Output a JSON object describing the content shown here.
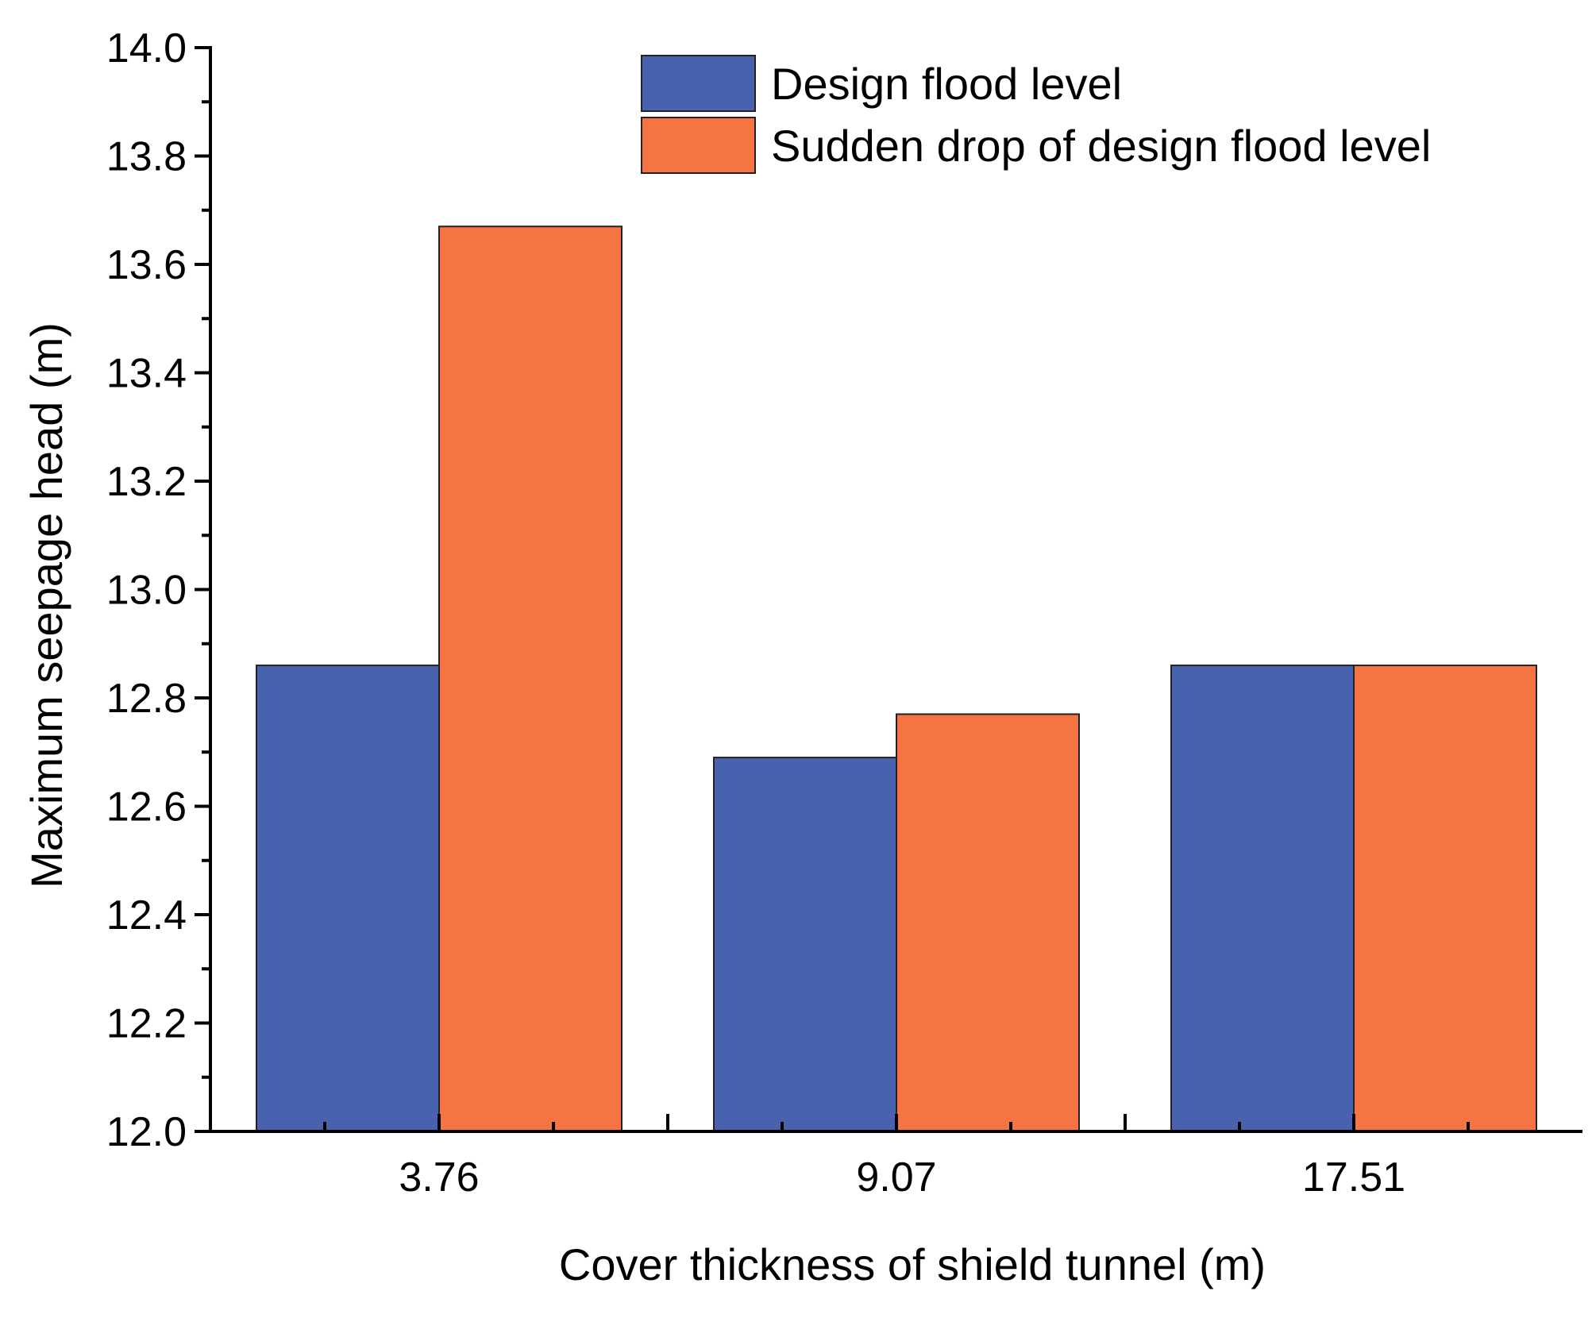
{
  "chart_data": {
    "type": "bar",
    "title": "",
    "xlabel": "Cover thickness of shield tunnel (m)",
    "ylabel": "Maximum seepage head (m)",
    "categories": [
      "3.76",
      "9.07",
      "17.51"
    ],
    "series": [
      {
        "name": "Design flood level",
        "color": "#4862ad",
        "values": [
          12.86,
          12.69,
          12.86
        ]
      },
      {
        "name": "Sudden drop of design flood level",
        "color": "#f67444",
        "values": [
          13.67,
          12.77,
          12.86
        ]
      }
    ],
    "ylim": [
      12.0,
      14.0
    ],
    "yticks": [
      "12.0",
      "12.2",
      "12.4",
      "12.6",
      "12.8",
      "13.0",
      "13.2",
      "13.4",
      "13.6",
      "13.8",
      "14.0"
    ],
    "grid": false,
    "legend_position": "top-right"
  }
}
